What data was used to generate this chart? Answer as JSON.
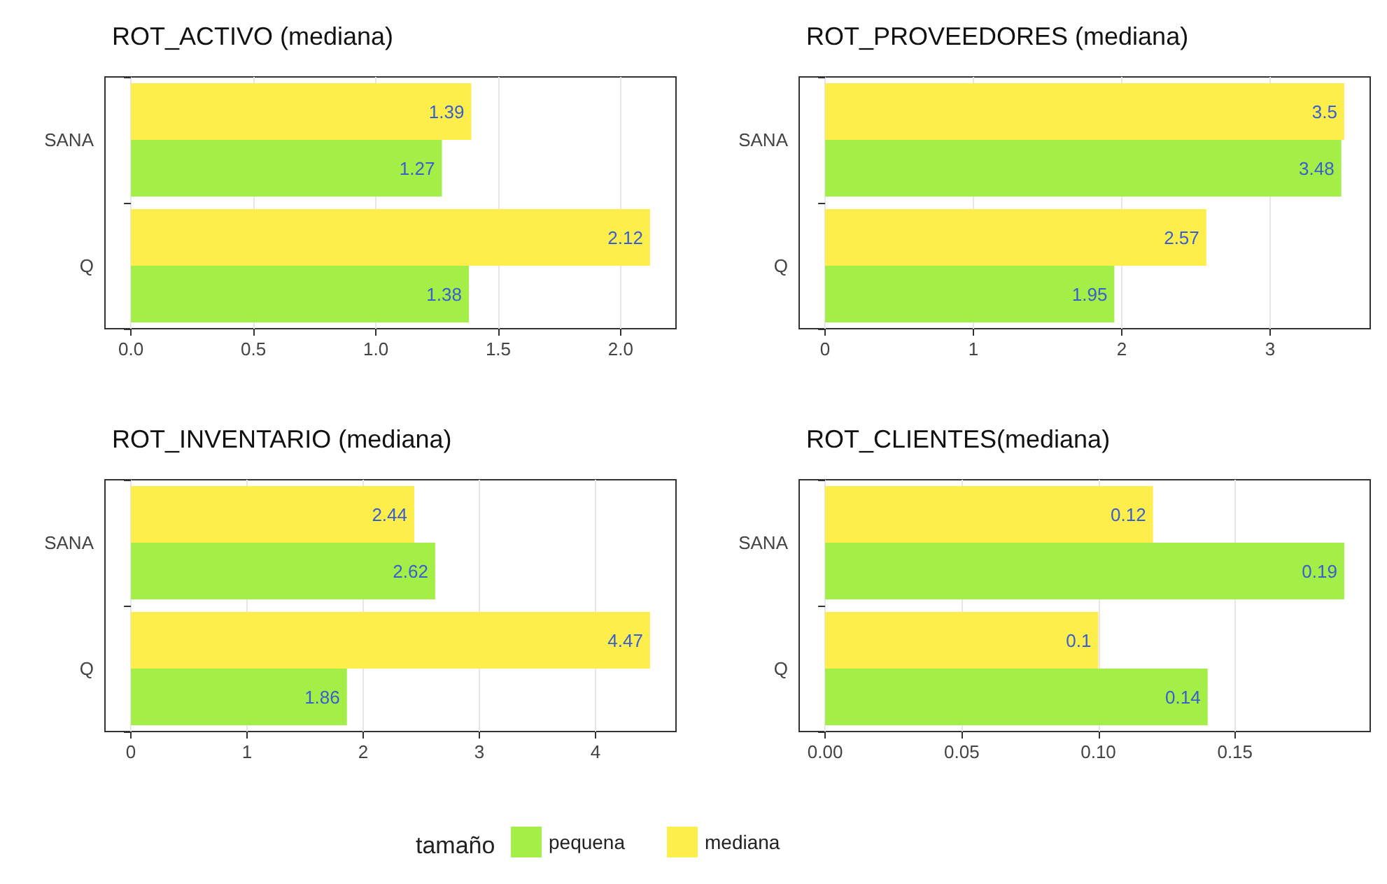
{
  "chart_data": [
    {
      "type": "bar",
      "orientation": "horizontal",
      "title": "ROT_ACTIVO (mediana)",
      "categories": [
        "SANA",
        "Q"
      ],
      "series": [
        {
          "name": "pequena",
          "color": "#a3ee47",
          "values": [
            1.27,
            1.38
          ]
        },
        {
          "name": "mediana",
          "color": "#fdee4c",
          "values": [
            1.39,
            2.12
          ]
        }
      ],
      "xlim": [
        -0.106,
        2.226
      ],
      "xticks": [
        {
          "value": 0,
          "label": "0.0"
        },
        {
          "value": 0.5,
          "label": "0.5"
        },
        {
          "value": 1,
          "label": "1.0"
        },
        {
          "value": 1.5,
          "label": "1.5"
        },
        {
          "value": 2,
          "label": "2.0"
        }
      ],
      "data_labels": true,
      "grid": "x",
      "legend": "bottom",
      "legend_title": "tamaño"
    },
    {
      "type": "bar",
      "orientation": "horizontal",
      "title": "ROT_PROVEEDORES (mediana)",
      "categories": [
        "SANA",
        "Q"
      ],
      "series": [
        {
          "name": "pequena",
          "color": "#a3ee47",
          "values": [
            3.48,
            1.95
          ]
        },
        {
          "name": "mediana",
          "color": "#fdee4c",
          "values": [
            3.5,
            2.57
          ]
        }
      ],
      "xlim": [
        -0.175,
        3.675
      ],
      "xticks": [
        0,
        1,
        2,
        3
      ],
      "data_labels": true,
      "grid": "x"
    },
    {
      "type": "bar",
      "orientation": "horizontal",
      "title": "ROT_INVENTARIO (mediana)",
      "categories": [
        "SANA",
        "Q"
      ],
      "series": [
        {
          "name": "pequena",
          "color": "#a3ee47",
          "values": [
            2.62,
            1.86
          ]
        },
        {
          "name": "mediana",
          "color": "#fdee4c",
          "values": [
            2.44,
            4.47
          ]
        }
      ],
      "xlim": [
        -0.2235,
        4.6935
      ],
      "xticks": [
        0,
        1,
        2,
        3,
        4
      ],
      "data_labels": true,
      "grid": "x"
    },
    {
      "type": "bar",
      "orientation": "horizontal",
      "title": "ROT_CLIENTES(mediana)",
      "categories": [
        "SANA",
        "Q"
      ],
      "series": [
        {
          "name": "pequena",
          "color": "#a3ee47",
          "values": [
            0.19,
            0.14
          ]
        },
        {
          "name": "mediana",
          "color": "#fdee4c",
          "values": [
            0.12,
            0.1
          ]
        }
      ],
      "xlim": [
        -0.0095,
        0.1995
      ],
      "xticks": [
        {
          "value": 0,
          "label": "0.00"
        },
        {
          "value": 0.05,
          "label": "0.05"
        },
        {
          "value": 0.1,
          "label": "0.10"
        },
        {
          "value": 0.15,
          "label": "0.15"
        }
      ],
      "data_labels": true,
      "grid": "x"
    }
  ]
}
